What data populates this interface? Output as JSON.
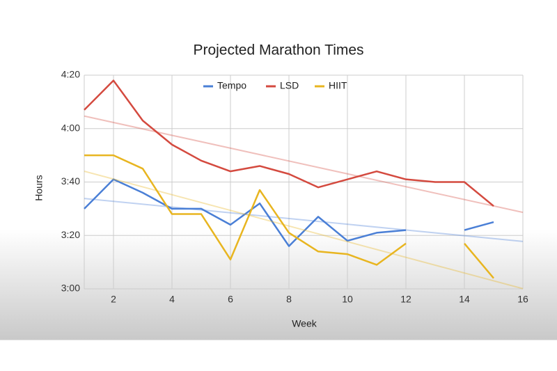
{
  "chart_data": {
    "type": "line",
    "title": "Projected Marathon Times",
    "x_label": "Week",
    "y_label": "Hours",
    "x": [
      1,
      2,
      3,
      4,
      5,
      6,
      7,
      8,
      9,
      10,
      11,
      12,
      13,
      14,
      15
    ],
    "series": [
      {
        "name": "Tempo",
        "color": "#4a7fd6",
        "values": [
          210,
          221,
          216,
          210,
          210,
          204,
          212,
          196,
          207,
          198,
          201,
          202,
          null,
          202,
          205
        ]
      },
      {
        "name": "LSD",
        "color": "#d44a3f",
        "values": [
          247,
          258,
          243,
          234,
          228,
          224,
          226,
          223,
          218,
          221,
          224,
          221,
          220,
          220,
          211
        ]
      },
      {
        "name": "HIIT",
        "color": "#e8b520",
        "values": [
          230,
          230,
          225,
          208,
          208,
          191,
          217,
          201,
          194,
          193,
          189,
          197,
          null,
          197,
          184
        ]
      }
    ],
    "xlim": [
      1,
      16
    ],
    "xticks": [
      2,
      4,
      6,
      8,
      10,
      12,
      14,
      16
    ],
    "ylim": [
      180,
      260
    ],
    "yticks": [
      {
        "value": 180,
        "label": "3:00"
      },
      {
        "value": 200,
        "label": "3:20"
      },
      {
        "value": 220,
        "label": "3:40"
      },
      {
        "value": 240,
        "label": "4:00"
      },
      {
        "value": 260,
        "label": "4:20"
      }
    ],
    "grid": true,
    "trendline": true,
    "legend": "top"
  }
}
